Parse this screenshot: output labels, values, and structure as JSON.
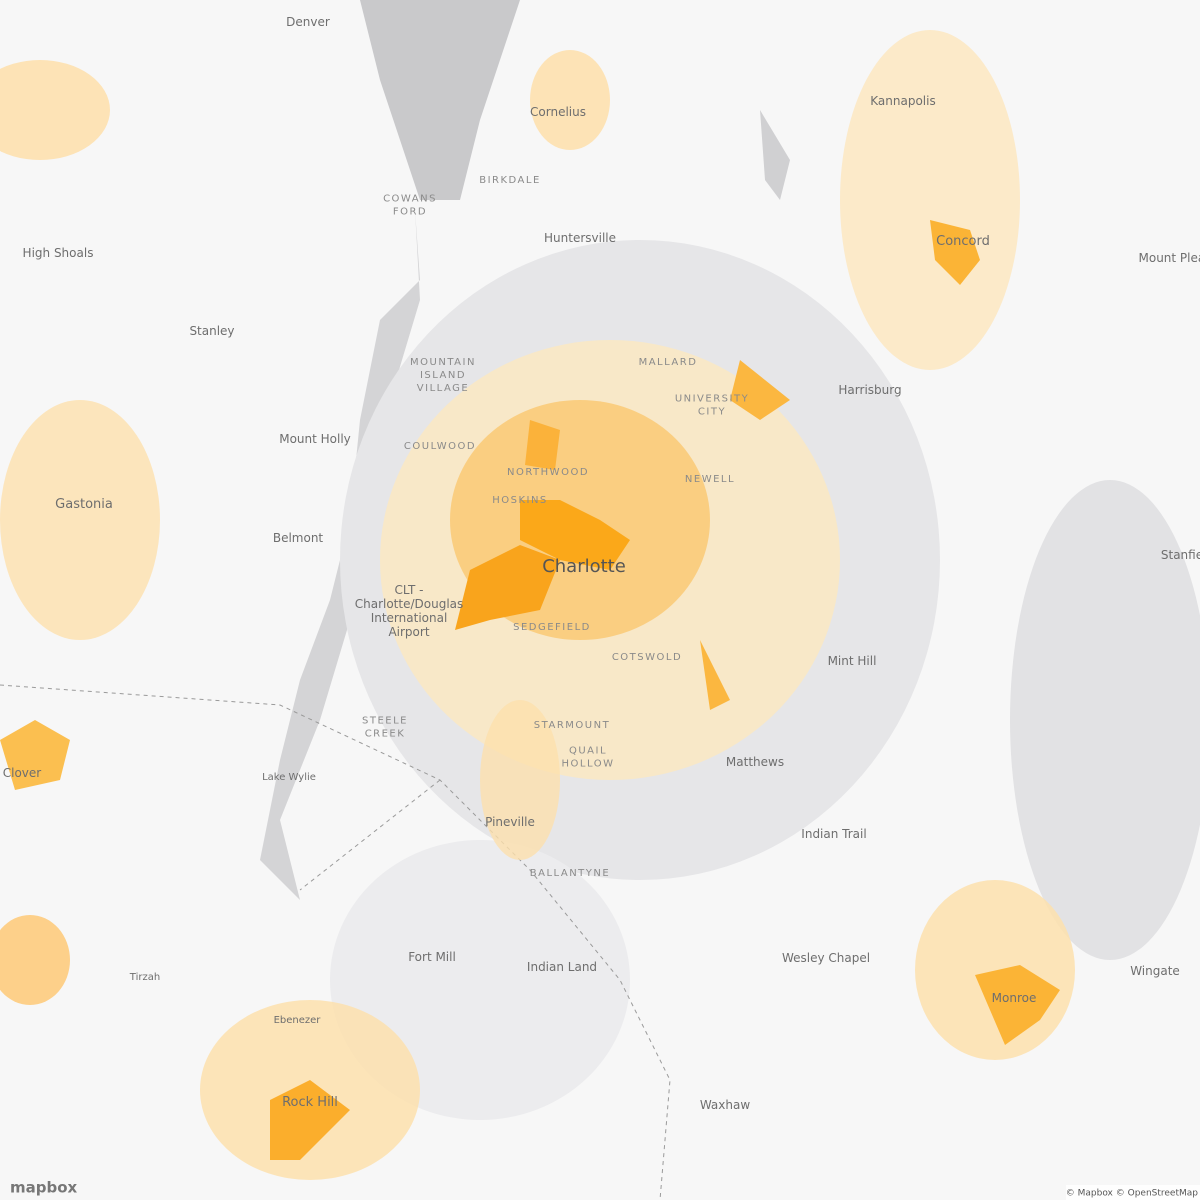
{
  "places": [
    {
      "lines": [
        "Denver"
      ],
      "style": "town"
    },
    {
      "lines": [
        "Cornelius"
      ],
      "style": "town"
    },
    {
      "lines": [
        "BIRKDALE"
      ],
      "style": "hood"
    },
    {
      "lines": [
        "COWANS",
        "FORD"
      ],
      "style": "hood"
    },
    {
      "lines": [
        "Huntersville"
      ],
      "style": "town"
    },
    {
      "lines": [
        "High Shoals"
      ],
      "style": "town"
    },
    {
      "lines": [
        "Stanley"
      ],
      "style": "town"
    },
    {
      "lines": [
        "Kannapolis"
      ],
      "style": "town"
    },
    {
      "lines": [
        "Concord"
      ],
      "style": "city"
    },
    {
      "lines": [
        "Mount Pleas"
      ],
      "style": "town"
    },
    {
      "lines": [
        "MALLARD"
      ],
      "style": "hood"
    },
    {
      "lines": [
        "UNIVERSITY",
        "CITY"
      ],
      "style": "hood"
    },
    {
      "lines": [
        "Harrisburg"
      ],
      "style": "town"
    },
    {
      "lines": [
        "MOUNTAIN",
        "ISLAND",
        "VILLAGE"
      ],
      "style": "hood"
    },
    {
      "lines": [
        "COULWOOD"
      ],
      "style": "hood"
    },
    {
      "lines": [
        "Mount Holly"
      ],
      "style": "town"
    },
    {
      "lines": [
        "NORTHWOOD"
      ],
      "style": "hood"
    },
    {
      "lines": [
        "HOSKINS"
      ],
      "style": "hood"
    },
    {
      "lines": [
        "NEWELL"
      ],
      "style": "hood"
    },
    {
      "lines": [
        "Gastonia"
      ],
      "style": "city"
    },
    {
      "lines": [
        "Belmont"
      ],
      "style": "town"
    },
    {
      "lines": [
        "Charlotte"
      ],
      "style": "big"
    },
    {
      "lines": [
        "CLT -",
        "Charlotte/Douglas",
        "International",
        "Airport"
      ],
      "style": "town"
    },
    {
      "lines": [
        "SEDGEFIELD"
      ],
      "style": "hood"
    },
    {
      "lines": [
        "COTSWOLD"
      ],
      "style": "hood"
    },
    {
      "lines": [
        "Mint Hill"
      ],
      "style": "town"
    },
    {
      "lines": [
        "STEELE",
        "CREEK"
      ],
      "style": "hood"
    },
    {
      "lines": [
        "STARMOUNT"
      ],
      "style": "hood"
    },
    {
      "lines": [
        "QUAIL",
        "HOLLOW"
      ],
      "style": "hood"
    },
    {
      "lines": [
        "Matthews"
      ],
      "style": "town"
    },
    {
      "lines": [
        "Clover"
      ],
      "style": "town"
    },
    {
      "lines": [
        "Lake Wylie"
      ],
      "style": "small"
    },
    {
      "lines": [
        "Pineville"
      ],
      "style": "town"
    },
    {
      "lines": [
        "Indian Trail"
      ],
      "style": "town"
    },
    {
      "lines": [
        "BALLANTYNE"
      ],
      "style": "hood"
    },
    {
      "lines": [
        "Fort Mill"
      ],
      "style": "town"
    },
    {
      "lines": [
        "Indian Land"
      ],
      "style": "town"
    },
    {
      "lines": [
        "Wesley Chapel"
      ],
      "style": "town"
    },
    {
      "lines": [
        "Tirzah"
      ],
      "style": "small"
    },
    {
      "lines": [
        "Wingate"
      ],
      "style": "town"
    },
    {
      "lines": [
        "Ebenezer"
      ],
      "style": "small"
    },
    {
      "lines": [
        "Rock Hill"
      ],
      "style": "city"
    },
    {
      "lines": [
        "Monroe"
      ],
      "style": "town"
    },
    {
      "lines": [
        "Waxhaw"
      ],
      "style": "town"
    },
    {
      "lines": [
        "Stanfie"
      ],
      "style": "town"
    }
  ],
  "attribution": "© Mapbox © OpenStreetMap",
  "logo": "mapbox"
}
